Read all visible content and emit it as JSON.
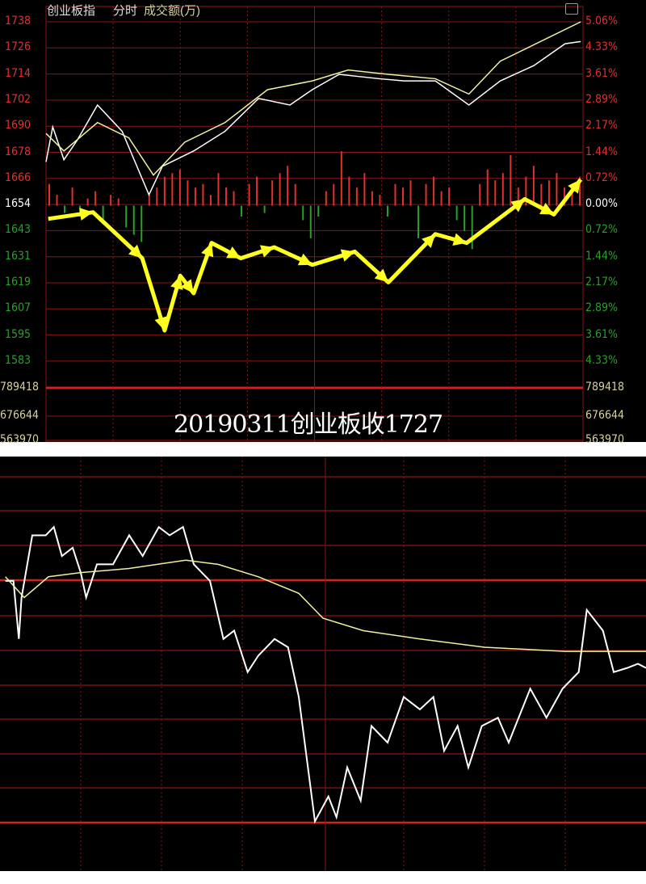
{
  "header": {
    "index_name": "创业板指",
    "mode": "分时",
    "volume_label": "成交额(万)"
  },
  "caption": "20190311创业板收1727",
  "colors": {
    "up": "#e03030",
    "down": "#2aa02a",
    "flat": "#ffffff",
    "price_line": "#ffffff",
    "avg_line": "#f0f0a0",
    "arrows": "#ffff20",
    "grid": "#8a1515",
    "volume_text": "#d8d0a0"
  },
  "chart_data": [
    {
      "type": "line",
      "title": "",
      "price_ticks": [
        "1738",
        "1726",
        "1714",
        "1702",
        "1690",
        "1678",
        "1666",
        "1654",
        "1643",
        "1631",
        "1619",
        "1607",
        "1595",
        "1583"
      ],
      "pct_ticks": [
        "5.06%",
        "4.33%",
        "3.61%",
        "2.89%",
        "2.17%",
        "1.44%",
        "0.72%",
        "0.00%",
        "0.72%",
        "1.44%",
        "2.17%",
        "2.89%",
        "3.61%",
        "4.33%"
      ],
      "volume_ticks": [
        "789418",
        "676644",
        "563970"
      ],
      "ylim": [
        1583,
        1738
      ],
      "xlim": [
        0,
        240
      ],
      "grid": true,
      "series": [
        {
          "role": "price",
          "x": [
            0,
            3,
            8,
            14,
            23,
            34,
            46,
            52,
            66,
            80,
            95,
            109,
            119,
            131,
            149,
            160,
            174,
            189,
            203,
            218,
            232,
            239
          ],
          "y": [
            1674,
            1690,
            1675,
            1684,
            1700,
            1688,
            1659,
            1672,
            1679,
            1688,
            1703,
            1700,
            1707,
            1714,
            1712,
            1711,
            1711,
            1700,
            1711,
            1718,
            1728,
            1729
          ]
        },
        {
          "role": "average",
          "x": [
            0,
            8,
            23,
            37,
            48,
            62,
            80,
            99,
            119,
            135,
            153,
            174,
            189,
            203,
            225,
            239
          ],
          "y": [
            1687,
            1679,
            1692,
            1685,
            1668,
            1683,
            1692,
            1707,
            1711,
            1716,
            1714,
            1712,
            1705,
            1720,
            1731,
            1738
          ]
        },
        {
          "role": "annotation-arrows",
          "x": [
            1,
            21,
            43,
            53,
            60,
            66,
            74,
            87,
            102,
            119,
            138,
            153,
            174,
            188,
            214,
            227,
            239
          ],
          "y": [
            1648,
            1651,
            1630,
            1597,
            1622,
            1614,
            1637,
            1630,
            1635,
            1627,
            1633,
            1619,
            1641,
            1637,
            1657,
            1650,
            1666
          ]
        }
      ],
      "volume_pct": [
        0.6,
        0.3,
        -0.2,
        0.5,
        -0.3,
        0.2,
        0.4,
        -0.5,
        0.3,
        0.2,
        -0.6,
        -0.8,
        -1.0,
        0.3,
        0.5,
        0.8,
        0.9,
        1.0,
        0.7,
        0.5,
        0.6,
        0.3,
        0.9,
        0.5,
        0.4,
        -0.3,
        0.6,
        0.8,
        -0.2,
        0.7,
        0.9,
        1.1,
        0.6,
        -0.4,
        -0.9,
        -0.3,
        0.4,
        0.6,
        1.5,
        0.8,
        0.5,
        0.9,
        0.4,
        0.3,
        -0.3,
        0.6,
        0.5,
        0.7,
        -0.9,
        0.6,
        0.8,
        0.4,
        0.5,
        -0.4,
        -0.7,
        -1.2,
        0.6,
        1.0,
        0.7,
        0.9,
        1.4,
        0.5,
        0.8,
        1.1,
        0.6,
        0.7,
        0.9,
        0.5,
        0.6,
        0.8
      ]
    },
    {
      "type": "line",
      "title": "",
      "xlim": [
        0,
        240
      ],
      "ylim": [
        0,
        100
      ],
      "grid": true,
      "series": [
        {
          "role": "price",
          "x": [
            2,
            5,
            7,
            8,
            12,
            17,
            20,
            23,
            27,
            30,
            32,
            36,
            42,
            48,
            53,
            59,
            63,
            68,
            72,
            78,
            83,
            87,
            92,
            96,
            102,
            107,
            111,
            114,
            117,
            122,
            125,
            129,
            134,
            138,
            144,
            150,
            156,
            161,
            165,
            170,
            174,
            179,
            185,
            189,
            197,
            203,
            209,
            215,
            218,
            224,
            228,
            233,
            237,
            240
          ],
          "y": [
            70,
            70,
            56,
            66,
            81,
            81,
            83,
            76,
            78,
            72,
            66,
            74,
            74,
            81,
            76,
            83,
            81,
            83,
            74,
            70,
            56,
            58,
            48,
            52,
            56,
            54,
            42,
            27,
            12,
            18,
            13,
            25,
            17,
            35,
            31,
            42,
            39,
            42,
            29,
            35,
            25,
            35,
            37,
            31,
            44,
            37,
            44,
            48,
            63,
            58,
            48,
            49,
            50,
            49
          ]
        },
        {
          "role": "average",
          "x": [
            2,
            9,
            18,
            30,
            48,
            69,
            81,
            96,
            111,
            120,
            135,
            156,
            180,
            210,
            240
          ],
          "y": [
            71,
            66,
            71,
            72,
            73,
            75,
            74,
            71,
            67,
            61,
            58,
            56,
            54,
            53,
            53
          ]
        }
      ]
    }
  ]
}
